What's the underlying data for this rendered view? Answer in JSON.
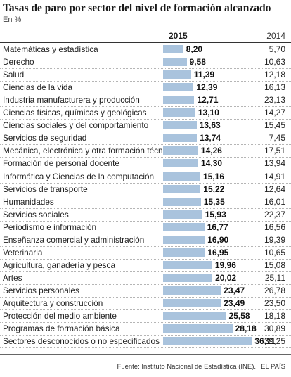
{
  "header": {
    "title": "Tasas de paro por sector del nivel de formación alcanzado",
    "subtitle": "En %",
    "col_2015": "2015",
    "col_2014": "2014"
  },
  "footer": {
    "source": "Fuente: Instituto Nacional de Estadística (INE).",
    "brand": "EL PAÍS"
  },
  "colors": {
    "bar": "#a9c3dd"
  },
  "chart_data": {
    "type": "bar",
    "orientation": "horizontal",
    "categories": [
      "Matemáticas y estadística",
      "Derecho",
      "Salud",
      "Ciencias de la vida",
      "Industria manufacturera y producción",
      "Ciencias físicas, químicas y geológicas",
      "Ciencias sociales y del comportamiento",
      "Servicios de seguridad",
      "Mecánica, electrónica y otra formación técnica",
      "Formación de personal docente",
      "Informática y Ciencias de la computación",
      "Servicios de transporte",
      "Humanidades",
      "Servicios sociales",
      "Periodismo e información",
      "Enseñanza comercial y administración",
      "Veterinaria",
      "Agricultura, ganadería y pesca",
      "Artes",
      "Servicios personales",
      "Arquitectura y construcción",
      "Protección del medio ambiente",
      "Programas de formación básica",
      "Sectores desconocidos o no especificados"
    ],
    "series": [
      {
        "name": "2015",
        "values": [
          8.2,
          9.58,
          11.39,
          12.39,
          12.71,
          13.1,
          13.63,
          13.74,
          14.26,
          14.3,
          15.16,
          15.22,
          15.35,
          15.93,
          16.77,
          16.9,
          16.95,
          19.96,
          20.02,
          23.47,
          23.49,
          25.58,
          28.18,
          36.11
        ],
        "labels": [
          "8,20",
          "9,58",
          "11,39",
          "12,39",
          "12,71",
          "13,10",
          "13,63",
          "13,74",
          "14,26",
          "14,30",
          "15,16",
          "15,22",
          "15,35",
          "15,93",
          "16,77",
          "16,90",
          "16,95",
          "19,96",
          "20,02",
          "23,47",
          "23,49",
          "25,58",
          "28,18",
          "36,11"
        ]
      },
      {
        "name": "2014",
        "values": [
          5.7,
          10.63,
          12.18,
          16.13,
          23.13,
          14.27,
          15.45,
          7.45,
          17.51,
          13.94,
          14.91,
          12.64,
          16.01,
          22.37,
          16.56,
          19.39,
          10.65,
          15.08,
          25.11,
          26.78,
          23.5,
          18.18,
          30.89,
          39.25
        ],
        "labels": [
          "5,70",
          "10,63",
          "12,18",
          "16,13",
          "23,13",
          "14,27",
          "15,45",
          "7,45",
          "17,51",
          "13,94",
          "14,91",
          "12,64",
          "16,01",
          "22,37",
          "16,56",
          "19,39",
          "10,65",
          "15,08",
          "25,11",
          "26,78",
          "23,50",
          "18,18",
          "30,89",
          "39,25"
        ]
      }
    ],
    "bar_series": "2015",
    "xlim": [
      0,
      40
    ],
    "grid": false
  }
}
